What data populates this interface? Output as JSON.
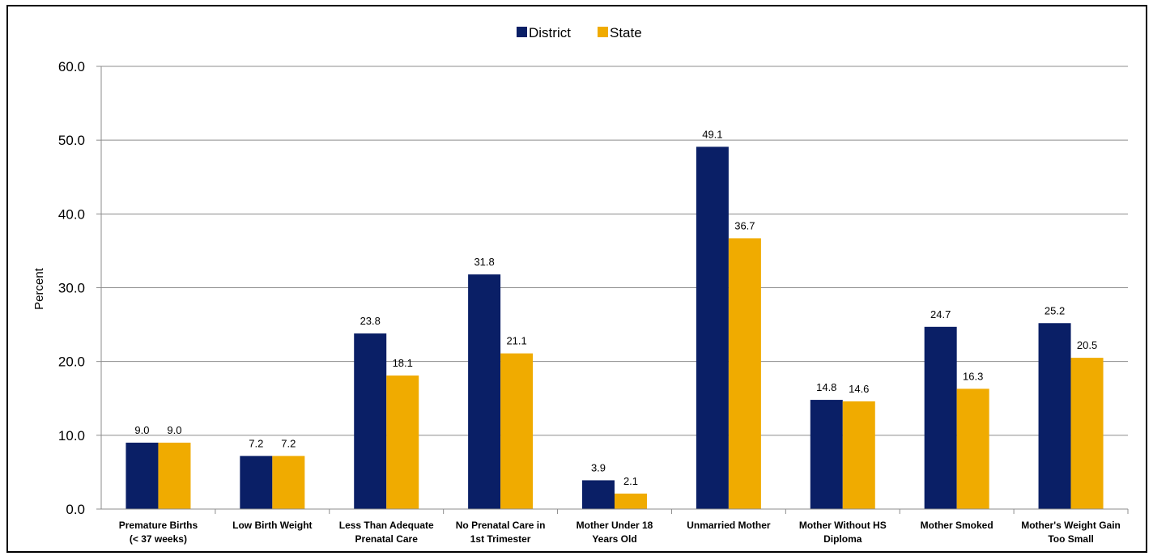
{
  "chart_data": {
    "type": "bar",
    "categories": [
      [
        "Premature Births",
        "(< 37 weeks)"
      ],
      [
        "Low Birth Weight"
      ],
      [
        "Less Than Adequate",
        "Prenatal Care"
      ],
      [
        "No Prenatal Care in",
        "1st Trimester"
      ],
      [
        "Mother Under 18",
        "Years Old"
      ],
      [
        "Unmarried Mother"
      ],
      [
        "Mother Without HS",
        "Diploma"
      ],
      [
        "Mother Smoked"
      ],
      [
        "Mother's Weight Gain",
        "Too Small"
      ]
    ],
    "series": [
      {
        "name": "District",
        "color": "#0a1f66",
        "values": [
          9.0,
          7.2,
          23.8,
          31.8,
          3.9,
          49.1,
          14.8,
          24.7,
          25.2
        ]
      },
      {
        "name": "State",
        "color": "#f0ab00",
        "values": [
          9.0,
          7.2,
          18.1,
          21.1,
          2.1,
          36.7,
          14.6,
          16.3,
          20.5
        ]
      }
    ],
    "ylabel": "Percent",
    "ylim": [
      0,
      60
    ],
    "yticks": [
      "0.0",
      "10.0",
      "20.0",
      "30.0",
      "40.0",
      "50.0",
      "60.0"
    ],
    "grid": true,
    "legend_position": "top-center"
  }
}
